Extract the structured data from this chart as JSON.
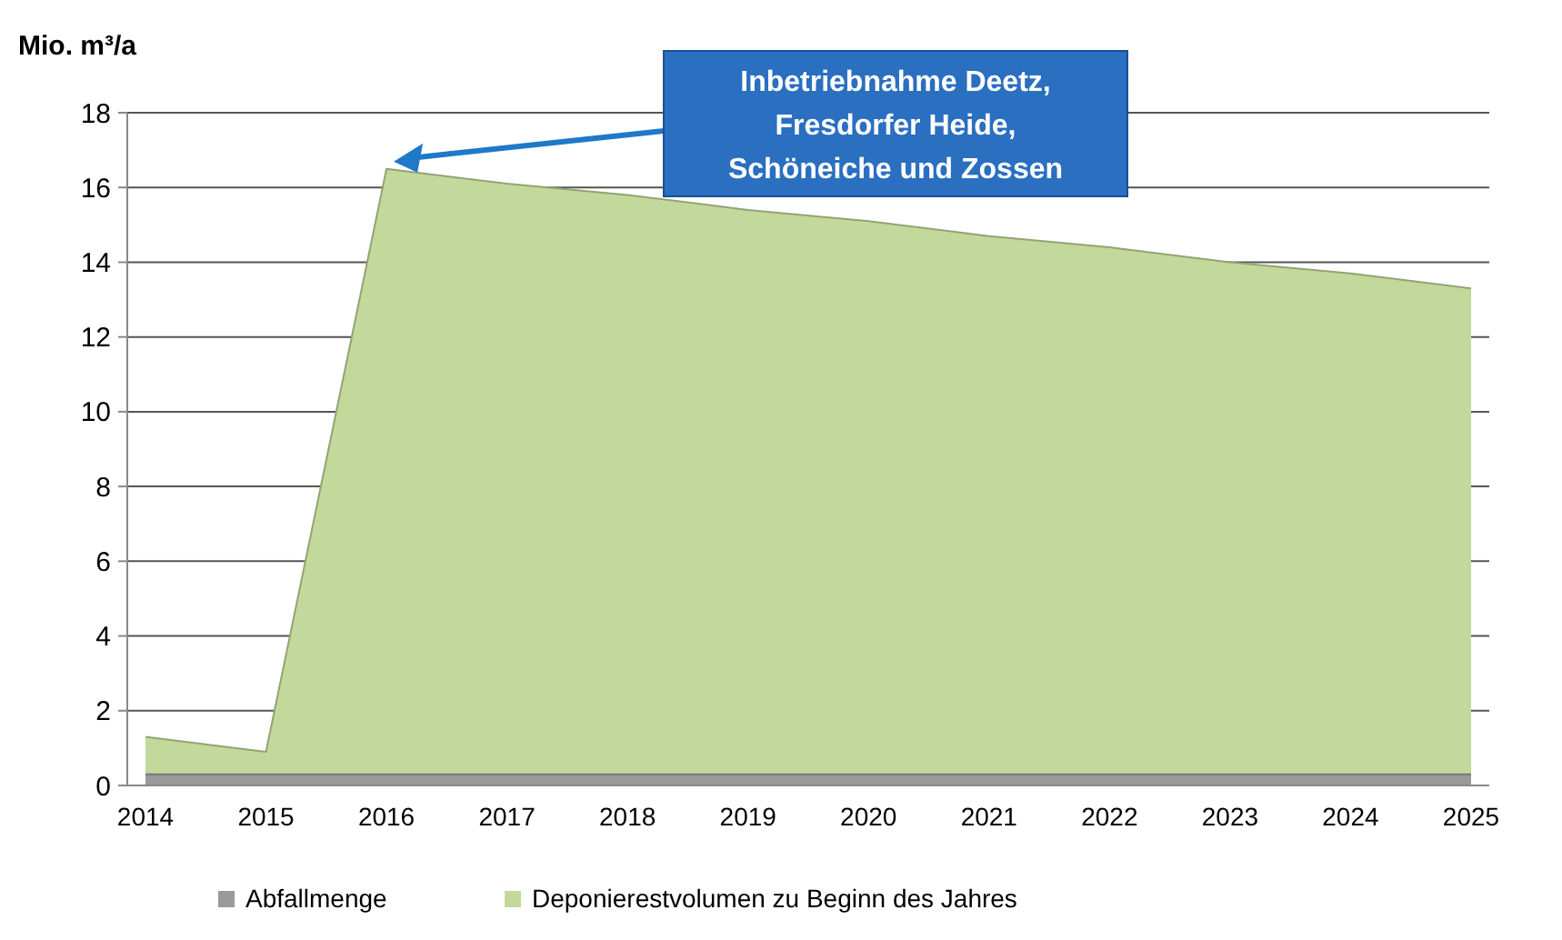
{
  "chart_data": {
    "type": "area",
    "ylabel": "Mio. m³/a",
    "categories": [
      "2014",
      "2015",
      "2016",
      "2017",
      "2018",
      "2019",
      "2020",
      "2021",
      "2022",
      "2023",
      "2024",
      "2025"
    ],
    "series": [
      {
        "name": "Abfallmenge",
        "color": "#9a9a9a",
        "values": [
          0.3,
          0.3,
          0.3,
          0.3,
          0.3,
          0.3,
          0.3,
          0.3,
          0.3,
          0.3,
          0.3,
          0.3
        ]
      },
      {
        "name": "Deponierestvolumen zu Beginn des Jahres",
        "color": "#c3d99b",
        "values": [
          1.3,
          0.9,
          16.5,
          16.1,
          15.8,
          15.4,
          15.1,
          14.7,
          14.4,
          14.0,
          13.7,
          13.3
        ]
      }
    ],
    "ylim": [
      0,
      18
    ],
    "yticks": [
      0,
      2,
      4,
      6,
      8,
      10,
      12,
      14,
      16,
      18
    ],
    "grid": "y",
    "legend": "bottom",
    "annotations": [
      "Inbetriebnahme Deetz, Fresdorfer Heide, Schöneiche und Zossen"
    ]
  }
}
